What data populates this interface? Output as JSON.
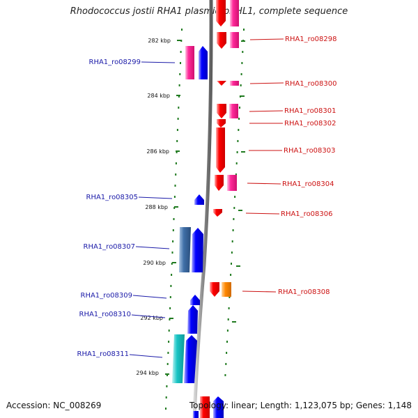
{
  "header": {
    "title": "Rhodococcus jostii RHA1 plasmid pRHL1, complete sequence"
  },
  "footer": {
    "accession": "Accession: NC_008269",
    "summary": "Topology: linear; Length: 1,123,075 bp; Genes: 1,148"
  },
  "map": {
    "kbp_ticks": [
      "282 kbp",
      "284 kbp",
      "286 kbp",
      "288 kbp",
      "290 kbp",
      "292 kbp",
      "294 kbp"
    ],
    "gene_labels_left": [
      "RHA1_ro08299",
      "RHA1_ro08305",
      "RHA1_ro08307",
      "RHA1_ro08309",
      "RHA1_ro08310",
      "RHA1_ro08311"
    ],
    "gene_labels_right": [
      "RHA1_ro08298",
      "RHA1_ro08300",
      "RHA1_ro08301",
      "RHA1_ro08302",
      "RHA1_ro08303",
      "RHA1_ro08304",
      "RHA1_ro08306",
      "RHA1_ro08308"
    ],
    "colors": {
      "backbone": "#8c8c8c",
      "scale_dots": "#1f7a1f",
      "left_label": "#1a1aa8",
      "right_label": "#cc1111",
      "gene_red": "#ff0000",
      "gene_pink": "#ff2a9a",
      "gene_blue": "#0000ff",
      "gene_steel": "#3f6fa8",
      "gene_cyan": "#19c4c4",
      "gene_orange": "#ff8800"
    }
  }
}
